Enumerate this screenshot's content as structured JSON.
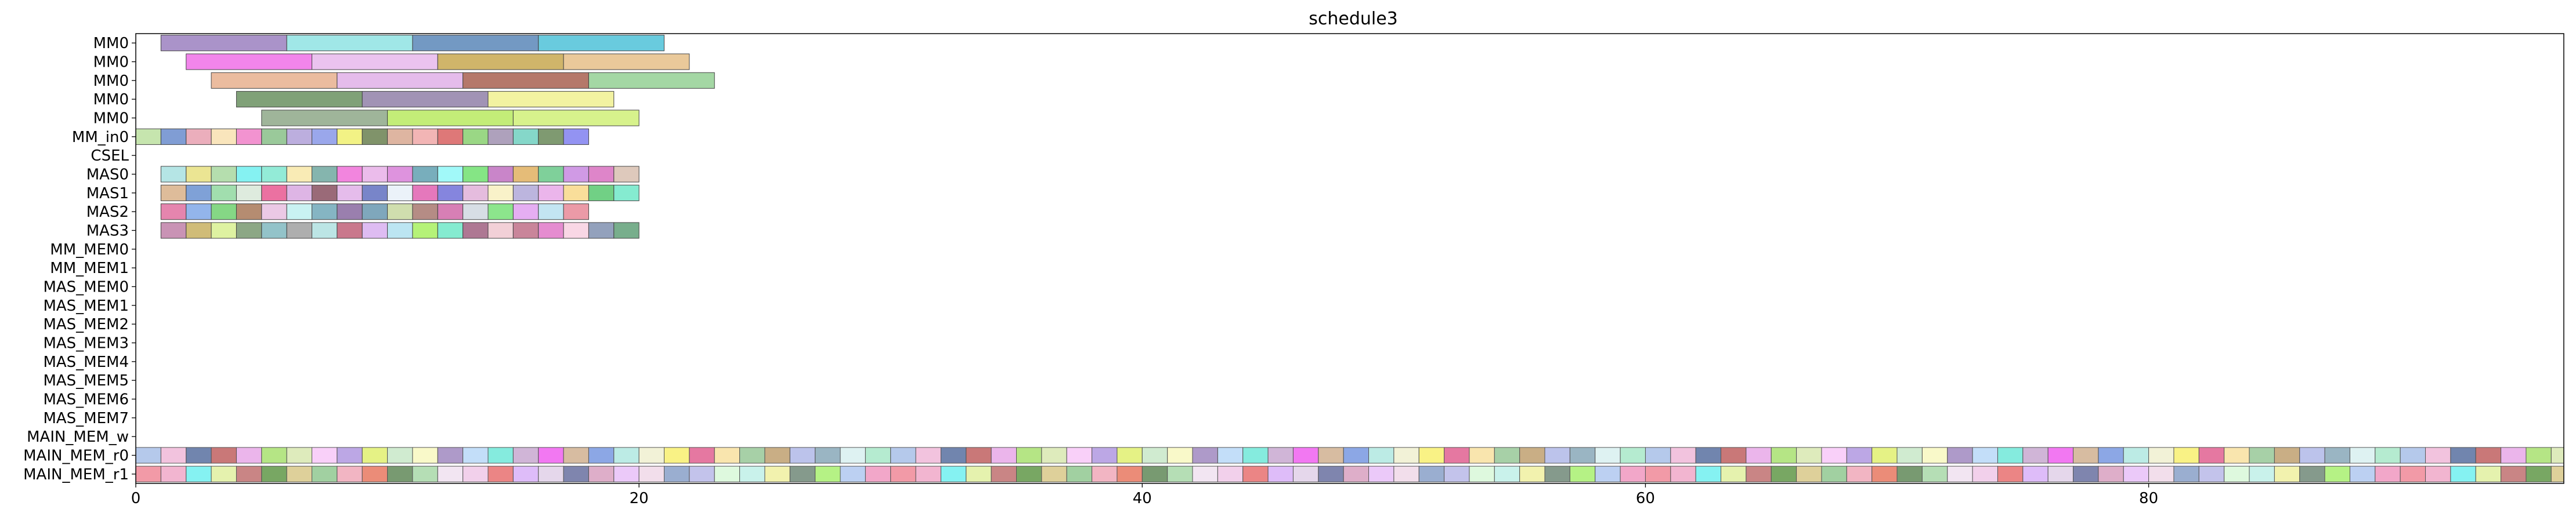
{
  "chart_data": {
    "type": "gantt",
    "title": "schedule3",
    "xlabel": "",
    "ylabel": "",
    "xlim": [
      0,
      96.5
    ],
    "x_ticks": [
      0,
      20,
      40,
      60,
      80
    ],
    "grid": false,
    "rows": [
      "MM0",
      "MM0",
      "MM0",
      "MM0",
      "MM0",
      "MM_in0",
      "CSEL",
      "MAS0",
      "MAS1",
      "MAS2",
      "MAS3",
      "MM_MEM0",
      "MM_MEM1",
      "MAS_MEM0",
      "MAS_MEM1",
      "MAS_MEM2",
      "MAS_MEM3",
      "MAS_MEM4",
      "MAS_MEM5",
      "MAS_MEM6",
      "MAS_MEM7",
      "MAIN_MEM_w",
      "MAIN_MEM_r0",
      "MAIN_MEM_r1"
    ],
    "tasks": [
      {
        "row": 0,
        "start": 1,
        "end": 6,
        "color": "#9b80c0"
      },
      {
        "row": 0,
        "start": 6,
        "end": 11,
        "color": "#8fe3e3"
      },
      {
        "row": 0,
        "start": 11,
        "end": 16,
        "color": "#5a87b8"
      },
      {
        "row": 0,
        "start": 16,
        "end": 21,
        "color": "#4fc2d8"
      },
      {
        "row": 1,
        "start": 2,
        "end": 7,
        "color": "#f070e8"
      },
      {
        "row": 1,
        "start": 7,
        "end": 12,
        "color": "#e8b8ec"
      },
      {
        "row": 1,
        "start": 12,
        "end": 17,
        "color": "#c8a850"
      },
      {
        "row": 1,
        "start": 17,
        "end": 22,
        "color": "#e6c088"
      },
      {
        "row": 2,
        "start": 3,
        "end": 8,
        "color": "#e8b08e"
      },
      {
        "row": 2,
        "start": 8,
        "end": 13,
        "color": "#e0b0e8"
      },
      {
        "row": 2,
        "start": 13,
        "end": 18,
        "color": "#a86050"
      },
      {
        "row": 2,
        "start": 18,
        "end": 23,
        "color": "#94d094"
      },
      {
        "row": 3,
        "start": 4,
        "end": 9,
        "color": "#6a9060"
      },
      {
        "row": 3,
        "start": 9,
        "end": 14,
        "color": "#9080a8"
      },
      {
        "row": 3,
        "start": 14,
        "end": 19,
        "color": "#f0f090"
      },
      {
        "row": 4,
        "start": 5,
        "end": 10,
        "color": "#8ea888"
      },
      {
        "row": 4,
        "start": 10,
        "end": 15,
        "color": "#b8ea60"
      },
      {
        "row": 4,
        "start": 15,
        "end": 20,
        "color": "#d0f078"
      },
      {
        "row": 5,
        "start": 0,
        "end": 1,
        "color": "#bce0a0"
      },
      {
        "row": 5,
        "start": 1,
        "end": 2,
        "color": "#6a8ccc"
      },
      {
        "row": 5,
        "start": 2,
        "end": 3,
        "color": "#e8a0b0"
      },
      {
        "row": 5,
        "start": 3,
        "end": 4,
        "color": "#f8e0b0"
      },
      {
        "row": 5,
        "start": 4,
        "end": 5,
        "color": "#f080c8"
      },
      {
        "row": 5,
        "start": 5,
        "end": 6,
        "color": "#88c088"
      },
      {
        "row": 5,
        "start": 6,
        "end": 7,
        "color": "#b0a0d8"
      },
      {
        "row": 5,
        "start": 7,
        "end": 8,
        "color": "#8898e8"
      },
      {
        "row": 5,
        "start": 8,
        "end": 9,
        "color": "#f0f070"
      },
      {
        "row": 5,
        "start": 9,
        "end": 10,
        "color": "#6a8050"
      },
      {
        "row": 5,
        "start": 10,
        "end": 11,
        "color": "#d8a890"
      },
      {
        "row": 5,
        "start": 11,
        "end": 12,
        "color": "#f0a8a8"
      },
      {
        "row": 5,
        "start": 12,
        "end": 13,
        "color": "#d86060"
      },
      {
        "row": 5,
        "start": 13,
        "end": 14,
        "color": "#88d070"
      },
      {
        "row": 5,
        "start": 14,
        "end": 15,
        "color": "#a090b0"
      },
      {
        "row": 5,
        "start": 15,
        "end": 16,
        "color": "#70d0c0"
      },
      {
        "row": 5,
        "start": 16,
        "end": 17,
        "color": "#688858"
      },
      {
        "row": 5,
        "start": 17,
        "end": 18,
        "color": "#8080f0"
      },
      {
        "row": 7,
        "start": 1,
        "end": 2,
        "color": "#a8e0e0"
      },
      {
        "row": 7,
        "start": 2,
        "end": 3,
        "color": "#e8e080"
      },
      {
        "row": 7,
        "start": 3,
        "end": 4,
        "color": "#a8d8a0"
      },
      {
        "row": 7,
        "start": 4,
        "end": 5,
        "color": "#70f0f0"
      },
      {
        "row": 7,
        "start": 5,
        "end": 6,
        "color": "#80e8d0"
      },
      {
        "row": 7,
        "start": 6,
        "end": 7,
        "color": "#f8e8a8"
      },
      {
        "row": 7,
        "start": 7,
        "end": 8,
        "color": "#70a8a0"
      },
      {
        "row": 7,
        "start": 8,
        "end": 9,
        "color": "#f070d8"
      },
      {
        "row": 7,
        "start": 9,
        "end": 10,
        "color": "#e8b0e8"
      },
      {
        "row": 7,
        "start": 10,
        "end": 11,
        "color": "#d880d8"
      },
      {
        "row": 7,
        "start": 11,
        "end": 12,
        "color": "#60a0b0"
      },
      {
        "row": 7,
        "start": 12,
        "end": 13,
        "color": "#90f8f8"
      },
      {
        "row": 7,
        "start": 13,
        "end": 14,
        "color": "#70e070"
      },
      {
        "row": 7,
        "start": 14,
        "end": 15,
        "color": "#c070c0"
      },
      {
        "row": 7,
        "start": 15,
        "end": 16,
        "color": "#e0b060"
      },
      {
        "row": 7,
        "start": 16,
        "end": 17,
        "color": "#68c888"
      },
      {
        "row": 7,
        "start": 17,
        "end": 18,
        "color": "#c888e0"
      },
      {
        "row": 7,
        "start": 18,
        "end": 19,
        "color": "#d870c0"
      },
      {
        "row": 7,
        "start": 19,
        "end": 20,
        "color": "#d8c0b0"
      },
      {
        "row": 8,
        "start": 1,
        "end": 2,
        "color": "#d8b088"
      },
      {
        "row": 8,
        "start": 2,
        "end": 3,
        "color": "#6890d0"
      },
      {
        "row": 8,
        "start": 3,
        "end": 4,
        "color": "#90d8a0"
      },
      {
        "row": 8,
        "start": 4,
        "end": 5,
        "color": "#d8e8d8"
      },
      {
        "row": 8,
        "start": 5,
        "end": 6,
        "color": "#e85890"
      },
      {
        "row": 8,
        "start": 6,
        "end": 7,
        "color": "#d8a8e0"
      },
      {
        "row": 8,
        "start": 7,
        "end": 8,
        "color": "#885060"
      },
      {
        "row": 8,
        "start": 8,
        "end": 9,
        "color": "#e0b0e8"
      },
      {
        "row": 8,
        "start": 9,
        "end": 10,
        "color": "#6070c0"
      },
      {
        "row": 8,
        "start": 10,
        "end": 11,
        "color": "#e8f0f8"
      },
      {
        "row": 8,
        "start": 11,
        "end": 12,
        "color": "#e060b0"
      },
      {
        "row": 8,
        "start": 12,
        "end": 13,
        "color": "#7070d8"
      },
      {
        "row": 8,
        "start": 13,
        "end": 14,
        "color": "#e0b0d8"
      },
      {
        "row": 8,
        "start": 14,
        "end": 15,
        "color": "#f8f0c0"
      },
      {
        "row": 8,
        "start": 15,
        "end": 16,
        "color": "#b0a8d8"
      },
      {
        "row": 8,
        "start": 16,
        "end": 17,
        "color": "#e8a8e8"
      },
      {
        "row": 8,
        "start": 17,
        "end": 18,
        "color": "#f8d888"
      },
      {
        "row": 8,
        "start": 18,
        "end": 19,
        "color": "#58c870"
      },
      {
        "row": 8,
        "start": 19,
        "end": 20,
        "color": "#70e8c8"
      },
      {
        "row": 9,
        "start": 1,
        "end": 2,
        "color": "#e070a0"
      },
      {
        "row": 9,
        "start": 2,
        "end": 3,
        "color": "#80a8e8"
      },
      {
        "row": 9,
        "start": 3,
        "end": 4,
        "color": "#70d070"
      },
      {
        "row": 9,
        "start": 4,
        "end": 5,
        "color": "#a87858"
      },
      {
        "row": 9,
        "start": 5,
        "end": 6,
        "color": "#e8c0e0"
      },
      {
        "row": 9,
        "start": 6,
        "end": 7,
        "color": "#c0f0f0"
      },
      {
        "row": 9,
        "start": 7,
        "end": 8,
        "color": "#70a8b8"
      },
      {
        "row": 9,
        "start": 8,
        "end": 9,
        "color": "#8868a0"
      },
      {
        "row": 9,
        "start": 9,
        "end": 10,
        "color": "#6898b0"
      },
      {
        "row": 9,
        "start": 10,
        "end": 11,
        "color": "#c8d8a0"
      },
      {
        "row": 9,
        "start": 11,
        "end": 12,
        "color": "#a87870"
      },
      {
        "row": 9,
        "start": 12,
        "end": 13,
        "color": "#d068a8"
      },
      {
        "row": 9,
        "start": 13,
        "end": 14,
        "color": "#d0d8e0"
      },
      {
        "row": 9,
        "start": 14,
        "end": 15,
        "color": "#78e078"
      },
      {
        "row": 9,
        "start": 15,
        "end": 16,
        "color": "#e0a0f0"
      },
      {
        "row": 9,
        "start": 16,
        "end": 17,
        "color": "#b8e0f0"
      },
      {
        "row": 9,
        "start": 17,
        "end": 18,
        "color": "#e88898"
      },
      {
        "row": 10,
        "start": 1,
        "end": 2,
        "color": "#c080a8"
      },
      {
        "row": 10,
        "start": 2,
        "end": 3,
        "color": "#c8b060"
      },
      {
        "row": 10,
        "start": 3,
        "end": 4,
        "color": "#d8f090"
      },
      {
        "row": 10,
        "start": 4,
        "end": 5,
        "color": "#789870"
      },
      {
        "row": 10,
        "start": 5,
        "end": 6,
        "color": "#80b8c0"
      },
      {
        "row": 10,
        "start": 6,
        "end": 7,
        "color": "#a0a0a0"
      },
      {
        "row": 10,
        "start": 7,
        "end": 8,
        "color": "#b0e0e0"
      },
      {
        "row": 10,
        "start": 8,
        "end": 9,
        "color": "#c06078"
      },
      {
        "row": 10,
        "start": 9,
        "end": 10,
        "color": "#d8b0f0"
      },
      {
        "row": 10,
        "start": 10,
        "end": 11,
        "color": "#b0e0f0"
      },
      {
        "row": 10,
        "start": 11,
        "end": 12,
        "color": "#a8f060"
      },
      {
        "row": 10,
        "start": 12,
        "end": 13,
        "color": "#70e8c8"
      },
      {
        "row": 10,
        "start": 13,
        "end": 14,
        "color": "#a06080"
      },
      {
        "row": 10,
        "start": 14,
        "end": 15,
        "color": "#f0c8d0"
      },
      {
        "row": 10,
        "start": 15,
        "end": 16,
        "color": "#c07088"
      },
      {
        "row": 10,
        "start": 16,
        "end": 17,
        "color": "#e078c8"
      },
      {
        "row": 10,
        "start": 17,
        "end": 18,
        "color": "#f8d0e0"
      },
      {
        "row": 10,
        "start": 18,
        "end": 19,
        "color": "#8090b0"
      },
      {
        "row": 10,
        "start": 19,
        "end": 20,
        "color": "#60a078"
      },
      {
        "row": 22,
        "start": 0,
        "end": 96.5,
        "unit": 1,
        "palette": "r0"
      },
      {
        "row": 23,
        "start": 0,
        "end": 96.5,
        "unit": 1,
        "palette": "r1"
      }
    ],
    "stream_palettes": {
      "r0": [
        "#a8c0e8",
        "#f0b8d8",
        "#5870a0",
        "#c06060",
        "#e8a8e8",
        "#a8e070",
        "#d8e8b0",
        "#f8c8f8",
        "#b098e0",
        "#e0f070",
        "#c8e8c8",
        "#f8f8c0",
        "#a088c0",
        "#b8d8f8",
        "#70e8d8",
        "#c8a8d0",
        "#f060f0",
        "#d0b090",
        "#7898e0",
        "#b0e8e0",
        "#f0f0d0",
        "#f8f070",
        "#e06090",
        "#f8e0a0",
        "#98c898",
        "#c0a070",
        "#b0b8e8",
        "#88a8b8",
        "#d8f0f0",
        "#a8e8c8"
      ],
      "r1": [
        "#f08898",
        "#f0a8c8",
        "#70f0f0",
        "#e0f0a0",
        "#c07070",
        "#609848",
        "#d8c888",
        "#90c890",
        "#f0a8b8",
        "#e87860",
        "#608858",
        "#a8d8a8",
        "#f0e0f0",
        "#f0c8e8",
        "#e87070",
        "#d8b0f8",
        "#e0d0e8",
        "#6870a0",
        "#d8a0c0",
        "#e8c0f8",
        "#f0d8e8",
        "#88a0c8",
        "#b8b8e8",
        "#d8f8d8",
        "#c0f0e8",
        "#f0f0a0",
        "#708878",
        "#a8f070",
        "#b0c8f0",
        "#f098c0"
      ]
    }
  }
}
